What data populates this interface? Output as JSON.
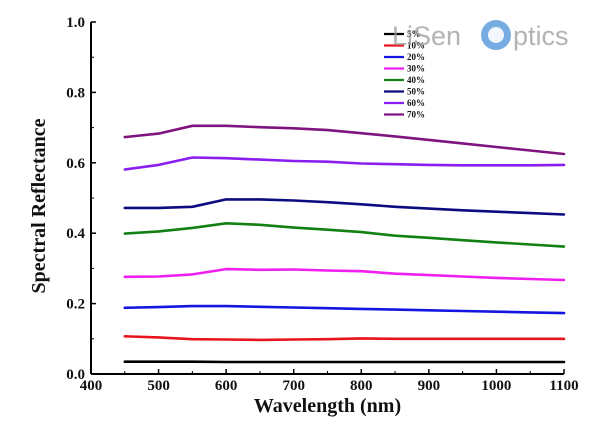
{
  "chart_data": {
    "type": "line",
    "title": "",
    "xlabel": "Wavelength (nm)",
    "ylabel": "Spectral Reflectance",
    "xlim": [
      400,
      1100
    ],
    "ylim": [
      0.0,
      1.0
    ],
    "x_ticks": [
      400,
      500,
      600,
      700,
      800,
      900,
      1000,
      1100
    ],
    "y_ticks": [
      0.0,
      0.2,
      0.4,
      0.6,
      0.8,
      1.0
    ],
    "y_tick_labels": [
      "0.0",
      "0.2",
      "0.4",
      "0.6",
      "0.8",
      "1.0"
    ],
    "legend_position": "top-right",
    "x": [
      450,
      500,
      550,
      600,
      650,
      700,
      750,
      800,
      850,
      900,
      950,
      1000,
      1050,
      1100
    ],
    "series": [
      {
        "name": "5%",
        "color": "#000000",
        "values": [
          0.035,
          0.035,
          0.035,
          0.034,
          0.034,
          0.034,
          0.034,
          0.034,
          0.034,
          0.034,
          0.034,
          0.034,
          0.034,
          0.034
        ]
      },
      {
        "name": "10%",
        "color": "#e8141b",
        "values": [
          0.107,
          0.104,
          0.099,
          0.098,
          0.097,
          0.098,
          0.099,
          0.101,
          0.1,
          0.1,
          0.1,
          0.1,
          0.1,
          0.1
        ]
      },
      {
        "name": "20%",
        "color": "#1515e0",
        "values": [
          0.188,
          0.19,
          0.193,
          0.193,
          0.191,
          0.189,
          0.187,
          0.185,
          0.183,
          0.181,
          0.179,
          0.177,
          0.175,
          0.173
        ]
      },
      {
        "name": "30%",
        "color": "#f01ef0",
        "values": [
          0.276,
          0.277,
          0.283,
          0.298,
          0.296,
          0.297,
          0.294,
          0.292,
          0.285,
          0.281,
          0.277,
          0.273,
          0.27,
          0.267
        ]
      },
      {
        "name": "40%",
        "color": "#138013",
        "values": [
          0.399,
          0.405,
          0.415,
          0.428,
          0.424,
          0.416,
          0.41,
          0.403,
          0.393,
          0.387,
          0.38,
          0.374,
          0.368,
          0.362
        ]
      },
      {
        "name": "50%",
        "color": "#0c0c80",
        "values": [
          0.472,
          0.472,
          0.475,
          0.496,
          0.496,
          0.493,
          0.488,
          0.482,
          0.475,
          0.47,
          0.465,
          0.461,
          0.457,
          0.453
        ]
      },
      {
        "name": "60%",
        "color": "#8a1ef0",
        "values": [
          0.581,
          0.594,
          0.615,
          0.613,
          0.609,
          0.605,
          0.603,
          0.598,
          0.596,
          0.594,
          0.593,
          0.593,
          0.593,
          0.594
        ]
      },
      {
        "name": "70%",
        "color": "#80147f",
        "values": [
          0.673,
          0.683,
          0.705,
          0.705,
          0.701,
          0.698,
          0.693,
          0.684,
          0.675,
          0.665,
          0.655,
          0.645,
          0.635,
          0.625
        ]
      }
    ]
  },
  "watermark": {
    "text_left": "LiSen",
    "text_right": "ptics"
  }
}
